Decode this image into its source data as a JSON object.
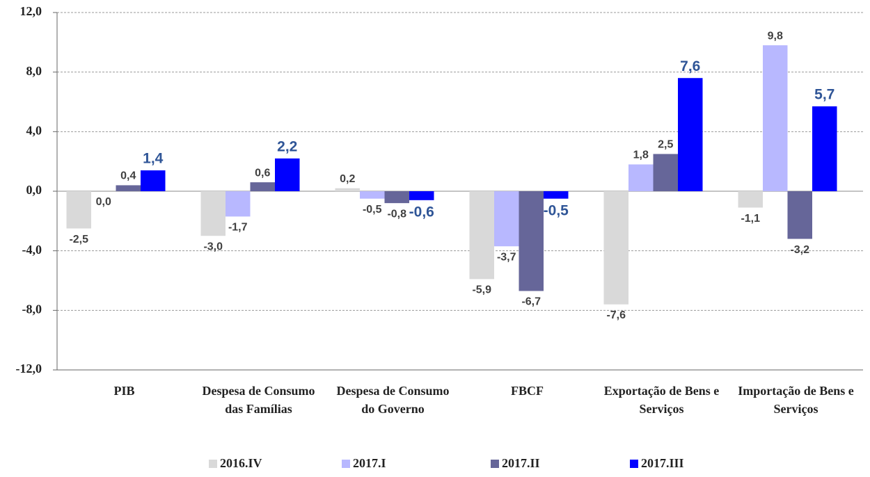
{
  "chart_data": {
    "type": "bar",
    "categories": [
      "PIB",
      "Despesa de Consumo das Famílias",
      "Despesa de Consumo do Governo",
      "FBCF",
      "Exportação de Bens e Serviços",
      "Importação de Bens e Serviços"
    ],
    "series": [
      {
        "name": "2016.IV",
        "color": "#d9d9d9",
        "values": [
          -2.5,
          -3.0,
          0.2,
          -5.9,
          -7.6,
          -1.1
        ],
        "value_labels": [
          "-2,5",
          "-3,0",
          "0,2",
          "-5,9",
          "-7,6",
          "-1,1"
        ]
      },
      {
        "name": "2017.I",
        "color": "#b8b8ff",
        "values": [
          0.0,
          -1.7,
          -0.5,
          -3.7,
          1.8,
          9.8
        ],
        "value_labels": [
          "0,0",
          "-1,7",
          "-0,5",
          "-3,7",
          "1,8",
          "9,8"
        ]
      },
      {
        "name": "2017.II",
        "color": "#666699",
        "values": [
          0.4,
          0.6,
          -0.8,
          -6.7,
          2.5,
          -3.2
        ],
        "value_labels": [
          "0,4",
          "0,6",
          "-0,8",
          "-6,7",
          "2,5",
          "-3,2"
        ]
      },
      {
        "name": "2017.III",
        "color": "#0000ff",
        "values": [
          1.4,
          2.2,
          -0.6,
          -0.5,
          7.6,
          5.7
        ],
        "value_labels": [
          "1,4",
          "2,2",
          "-0,6",
          "-0,5",
          "7,6",
          "5,7"
        ]
      }
    ],
    "ylim": [
      -12,
      12
    ],
    "yticks": [
      {
        "value": -12,
        "label": "-12,0"
      },
      {
        "value": -8,
        "label": "-8,0"
      },
      {
        "value": -4,
        "label": "-4,0"
      },
      {
        "value": 0,
        "label": "0,0"
      },
      {
        "value": 4,
        "label": "4,0"
      },
      {
        "value": 8,
        "label": "8,0"
      },
      {
        "value": 12,
        "label": "12,0"
      }
    ],
    "grid": true,
    "legend": "bottom"
  }
}
